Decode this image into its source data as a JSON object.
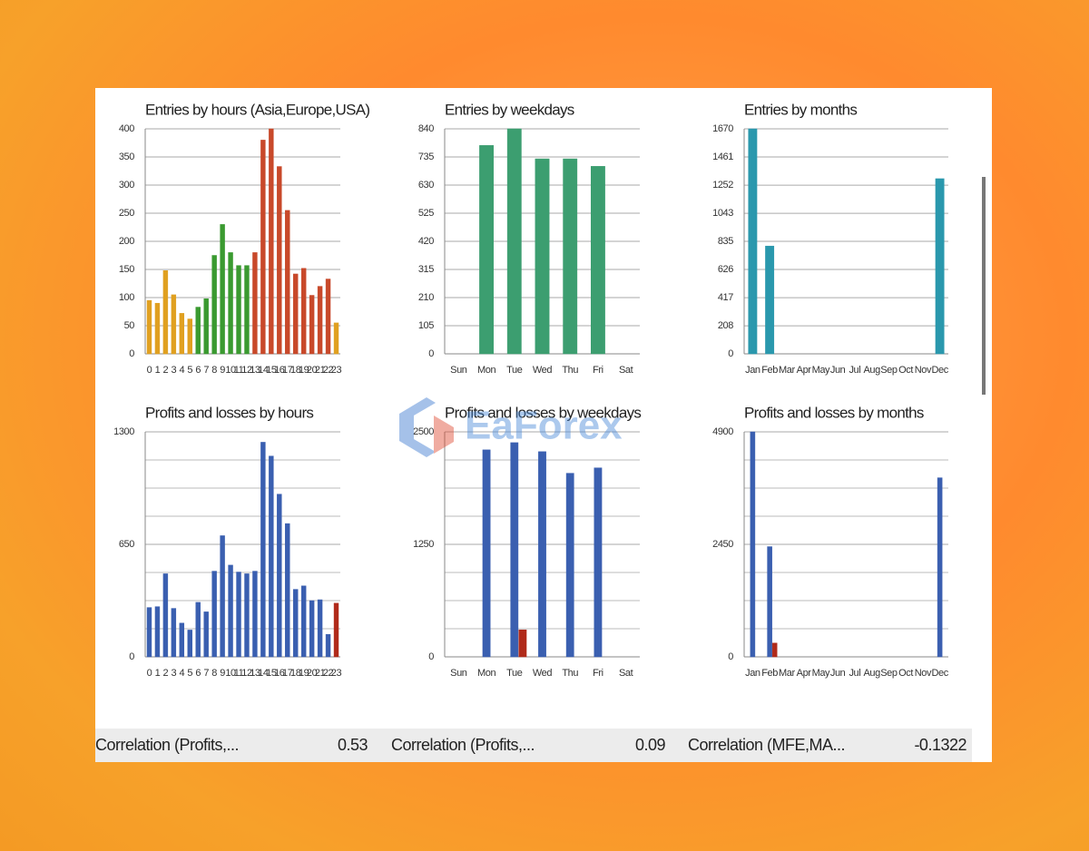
{
  "chart_data": [
    {
      "type": "bar",
      "title": "Entries by hours (Asia,Europe,USA)",
      "categories": [
        "0",
        "1",
        "2",
        "3",
        "4",
        "5",
        "6",
        "7",
        "8",
        "9",
        "10",
        "11",
        "12",
        "13",
        "14",
        "15",
        "16",
        "17",
        "18",
        "19",
        "20",
        "21",
        "22",
        "23"
      ],
      "values": [
        95,
        90,
        148,
        105,
        72,
        62,
        83,
        98,
        175,
        230,
        180,
        157,
        157,
        180,
        380,
        400,
        333,
        255,
        142,
        152,
        104,
        120,
        133,
        55
      ],
      "colors": [
        "#e0a020",
        "#e0a020",
        "#e0a020",
        "#e0a020",
        "#e0a020",
        "#e0a020",
        "#3a9a30",
        "#3a9a30",
        "#3a9a30",
        "#3a9a30",
        "#3a9a30",
        "#3a9a30",
        "#3a9a30",
        "#c8492a",
        "#c8492a",
        "#c8492a",
        "#c8492a",
        "#c8492a",
        "#c8492a",
        "#c8492a",
        "#c8492a",
        "#c8492a",
        "#c8492a",
        "#e0a020"
      ],
      "ylim": [
        0,
        400
      ],
      "yticks": [
        0,
        50,
        100,
        150,
        200,
        250,
        300,
        350,
        400
      ],
      "grid": true
    },
    {
      "type": "bar",
      "title": "Entries by weekdays",
      "categories": [
        "Sun",
        "Mon",
        "Tue",
        "Wed",
        "Thu",
        "Fri",
        "Sat"
      ],
      "values": [
        0,
        778,
        840,
        728,
        728,
        700,
        0
      ],
      "color": "#3c9e70",
      "ylim": [
        0,
        840
      ],
      "yticks": [
        0,
        105,
        210,
        315,
        420,
        525,
        630,
        735,
        840
      ],
      "grid": true
    },
    {
      "type": "bar",
      "title": "Entries by months",
      "categories": [
        "Jan",
        "Feb",
        "Mar",
        "Apr",
        "May",
        "Jun",
        "Jul",
        "Aug",
        "Sep",
        "Oct",
        "Nov",
        "Dec"
      ],
      "values": [
        1670,
        800,
        0,
        0,
        0,
        0,
        0,
        0,
        0,
        0,
        0,
        1300
      ],
      "color": "#2a98ad",
      "ylim": [
        0,
        1670
      ],
      "yticks": [
        0,
        208,
        417,
        626,
        835,
        1043,
        1252,
        1461,
        1670
      ],
      "grid": true
    },
    {
      "type": "grouped_bar",
      "title": "Profits and losses by hours",
      "categories": [
        "0",
        "1",
        "2",
        "3",
        "4",
        "5",
        "6",
        "7",
        "8",
        "9",
        "10",
        "11",
        "12",
        "13",
        "14",
        "15",
        "16",
        "17",
        "18",
        "19",
        "20",
        "21",
        "22",
        "23"
      ],
      "series": [
        {
          "color": "#3a5fb0",
          "values": [
            285,
            290,
            480,
            280,
            195,
            155,
            315,
            260,
            495,
            700,
            530,
            490,
            480,
            495,
            1240,
            1160,
            940,
            770,
            390,
            410,
            325,
            330,
            130,
            0
          ]
        },
        {
          "color": "#b02a1a",
          "values": [
            0,
            0,
            0,
            0,
            0,
            0,
            0,
            0,
            0,
            0,
            0,
            0,
            0,
            0,
            0,
            0,
            0,
            0,
            0,
            0,
            0,
            0,
            0,
            310
          ]
        }
      ],
      "ylim": [
        0,
        1300
      ],
      "yticks": [
        0,
        650,
        1300
      ],
      "grid": true,
      "minor_grid": 4
    },
    {
      "type": "grouped_bar",
      "title": "Profits and losses by weekdays",
      "categories": [
        "Sun",
        "Mon",
        "Tue",
        "Wed",
        "Thu",
        "Fri",
        "Sat"
      ],
      "series": [
        {
          "color": "#3a5fb0",
          "values": [
            0,
            2300,
            2380,
            2280,
            2040,
            2100,
            0
          ]
        },
        {
          "color": "#b02a1a",
          "values": [
            0,
            0,
            300,
            0,
            0,
            0,
            0
          ]
        }
      ],
      "ylim": [
        0,
        2500
      ],
      "yticks": [
        0,
        1250,
        2500
      ],
      "grid": true,
      "minor_grid": 4
    },
    {
      "type": "grouped_bar",
      "title": "Profits and losses by months",
      "categories": [
        "Jan",
        "Feb",
        "Mar",
        "Apr",
        "May",
        "Jun",
        "Jul",
        "Aug",
        "Sep",
        "Oct",
        "Nov",
        "Dec"
      ],
      "series": [
        {
          "color": "#3a5fb0",
          "values": [
            4900,
            2400,
            0,
            0,
            0,
            0,
            0,
            0,
            0,
            0,
            0,
            3900
          ]
        },
        {
          "color": "#b02a1a",
          "values": [
            0,
            300,
            0,
            0,
            0,
            0,
            0,
            0,
            0,
            0,
            0,
            0
          ]
        }
      ],
      "ylim": [
        0,
        4900
      ],
      "yticks": [
        0,
        2450,
        4900
      ],
      "grid": true,
      "minor_grid": 4
    }
  ],
  "correlations": [
    {
      "label": "Correlation (Profits,...",
      "value": 0.53
    },
    {
      "label": "Correlation (Profits,...",
      "value": 0.09
    },
    {
      "label": "Correlation (MFE,MA...",
      "value": -0.1322
    }
  ],
  "watermark": "EaForex"
}
